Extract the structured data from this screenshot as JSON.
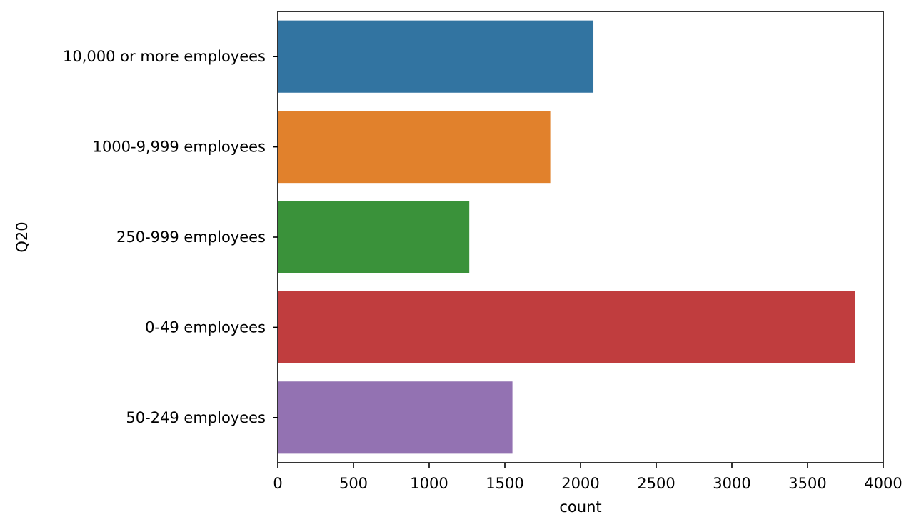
{
  "chart_data": {
    "type": "bar",
    "orientation": "horizontal",
    "title": "",
    "xlabel": "count",
    "ylabel": "Q20",
    "xlim": [
      0,
      4000
    ],
    "x_ticks": [
      "0",
      "500",
      "1000",
      "1500",
      "2000",
      "2500",
      "3000",
      "3500",
      "4000"
    ],
    "categories": [
      "10,000 or more employees",
      "1000-9,999 employees",
      "250-999 employees",
      "0-49 employees",
      "50-249 employees"
    ],
    "values": [
      2085,
      1800,
      1265,
      3815,
      1550
    ],
    "colors": [
      "#3274a1",
      "#e1812c",
      "#3a923a",
      "#c03d3e",
      "#9372b2"
    ],
    "grid": false,
    "legend": "none"
  }
}
